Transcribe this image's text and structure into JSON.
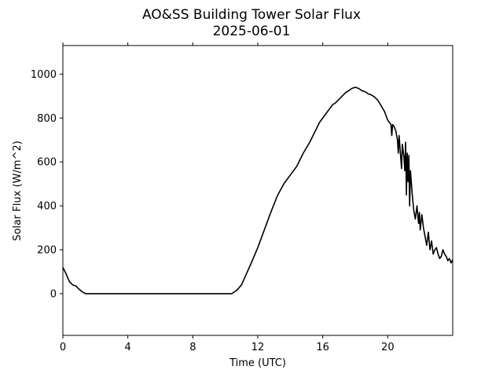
{
  "chart_data": {
    "type": "line",
    "title": "AO&SS Building Tower Solar Flux",
    "subtitle": "2025-06-01",
    "xlabel": "Time (UTC)",
    "ylabel": "Solar Flux (W/m^2)",
    "xlim": [
      0,
      24
    ],
    "ylim": [
      -190,
      1130
    ],
    "xticks": [
      0,
      4,
      8,
      12,
      16,
      20
    ],
    "yticks": [
      0,
      200,
      400,
      600,
      800,
      1000
    ],
    "grid": false,
    "line_color": "#000000",
    "series": [
      {
        "x": [
          0,
          0.2,
          0.4,
          0.6,
          0.8,
          1.0,
          1.2,
          1.4,
          2,
          3,
          4,
          5,
          6,
          7,
          8,
          9,
          10,
          10.4,
          10.7,
          11,
          11.3,
          11.6,
          12,
          12.4,
          12.8,
          13.2,
          13.6,
          14,
          14.4,
          14.8,
          15.2,
          15.4,
          15.6,
          15.8,
          16,
          16.2,
          16.4,
          16.6,
          16.8,
          17,
          17.2,
          17.4,
          17.6,
          17.8,
          18,
          18.2,
          18.4,
          18.6,
          18.8,
          19,
          19.2,
          19.4,
          19.6,
          19.8,
          20,
          20.2,
          20.25,
          20.3,
          20.4,
          20.5,
          20.6,
          20.65,
          20.7,
          20.8,
          20.85,
          20.9,
          21.0,
          21.05,
          21.1,
          21.15,
          21.2,
          21.25,
          21.3,
          21.35,
          21.4,
          21.5,
          21.6,
          21.7,
          21.8,
          21.9,
          21.95,
          22.0,
          22.1,
          22.2,
          22.3,
          22.4,
          22.5,
          22.6,
          22.7,
          22.8,
          22.9,
          23.0,
          23.1,
          23.2,
          23.3,
          23.4,
          23.5,
          23.6,
          23.7,
          23.8,
          23.9,
          24
        ],
        "y": [
          120,
          90,
          55,
          40,
          35,
          20,
          8,
          0,
          0,
          0,
          0,
          0,
          0,
          0,
          0,
          0,
          0,
          0,
          15,
          40,
          90,
          140,
          210,
          290,
          370,
          445,
          500,
          540,
          580,
          640,
          690,
          720,
          750,
          780,
          800,
          820,
          840,
          860,
          870,
          885,
          900,
          915,
          925,
          935,
          940,
          935,
          925,
          920,
          910,
          905,
          895,
          880,
          855,
          830,
          790,
          770,
          720,
          770,
          760,
          740,
          700,
          640,
          720,
          620,
          570,
          680,
          620,
          560,
          690,
          450,
          640,
          510,
          630,
          400,
          560,
          460,
          380,
          340,
          400,
          320,
          370,
          290,
          360,
          300,
          260,
          220,
          280,
          200,
          240,
          180,
          200,
          210,
          180,
          160,
          170,
          200,
          180,
          170,
          150,
          160,
          140,
          155
        ]
      }
    ]
  }
}
